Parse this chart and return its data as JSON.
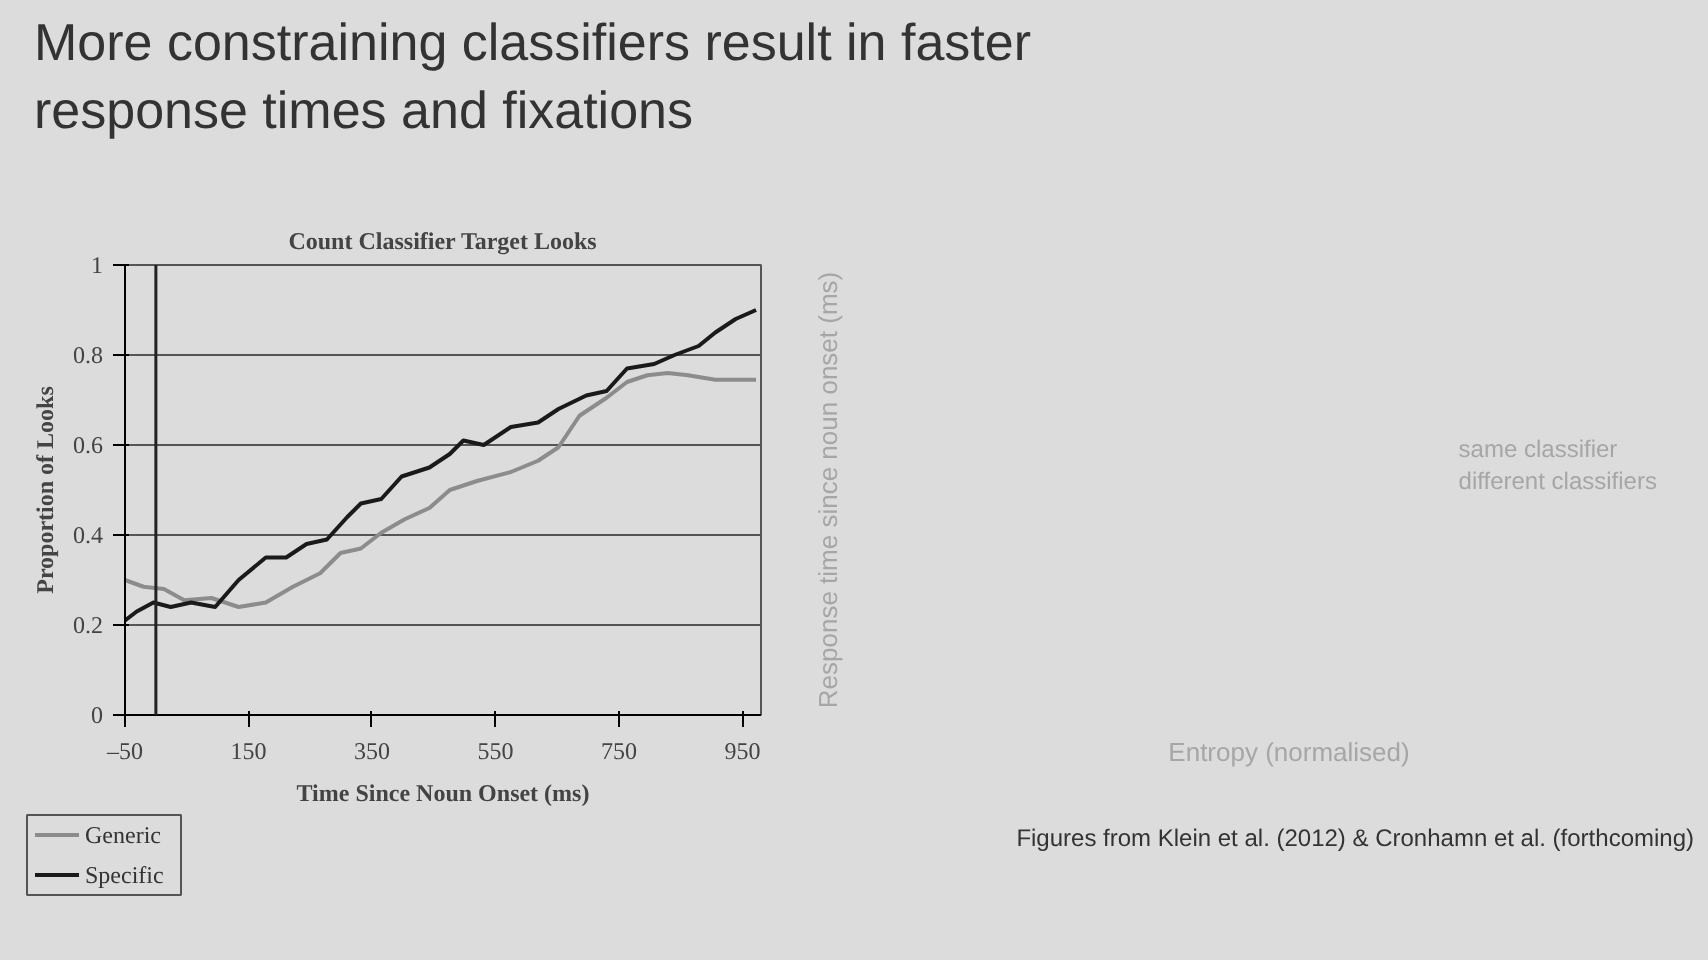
{
  "chart_data": [
    {
      "type": "line",
      "title": "Count Classifier Target Looks",
      "xlabel": "Time Since Noun Onset (ms)",
      "ylabel": "Proportion of Looks",
      "annotations": [
        "More constraining classifiers result in faster response times and fixations"
      ],
      "xlim": [
        -50,
        980
      ],
      "xticks": [
        {
          "value": -50,
          "label": "–50"
        },
        150,
        350,
        550,
        750,
        950
      ],
      "ylim": [
        0,
        1
      ],
      "yticks": [
        0,
        0.2,
        0.4,
        0.6,
        0.8,
        1
      ],
      "grid": "y",
      "legend": "bottom left",
      "marker": "none",
      "line_style": "solid",
      "ref_lines": [
        {
          "axis": "x",
          "value": 0,
          "label": null,
          "color": "#222222"
        }
      ],
      "series": [
        {
          "name": "Generic",
          "color": "#8c8c8c",
          "x": [
            -50,
            -20,
            13,
            46,
            90,
            134,
            178,
            222,
            266,
            299,
            332,
            365,
            403,
            443,
            476,
            520,
            575,
            619,
            652,
            686,
            730,
            763,
            796,
            829,
            862,
            906,
            972
          ],
          "values": [
            0.3,
            0.285,
            0.28,
            0.255,
            0.26,
            0.24,
            0.25,
            0.285,
            0.315,
            0.36,
            0.37,
            0.405,
            0.435,
            0.46,
            0.5,
            0.52,
            0.54,
            0.565,
            0.595,
            0.665,
            0.705,
            0.74,
            0.755,
            0.76,
            0.755,
            0.745,
            0.745
          ]
        },
        {
          "name": "Specific",
          "color": "#1a1a1a",
          "x": [
            -50,
            -31,
            -4,
            24,
            57,
            96,
            134,
            178,
            211,
            244,
            277,
            310,
            332,
            365,
            398,
            443,
            476,
            498,
            531,
            575,
            619,
            652,
            697,
            730,
            763,
            807,
            840,
            879,
            906,
            939,
            972
          ],
          "values": [
            0.21,
            0.23,
            0.25,
            0.24,
            0.25,
            0.24,
            0.3,
            0.35,
            0.35,
            0.38,
            0.39,
            0.44,
            0.47,
            0.48,
            0.53,
            0.55,
            0.58,
            0.61,
            0.6,
            0.64,
            0.65,
            0.68,
            0.71,
            0.72,
            0.77,
            0.78,
            0.8,
            0.82,
            0.85,
            0.88,
            0.9
          ]
        }
      ]
    },
    {
      "type": "other",
      "xlabel": "Entropy (normalised)",
      "ylabel": "Response time since noun onset (ms)",
      "annotations": [
        "same classifier",
        "different classifiers",
        "Figures from Klein et al. (2012) & Cronhamn et al. (forthcoming)"
      ]
    }
  ]
}
